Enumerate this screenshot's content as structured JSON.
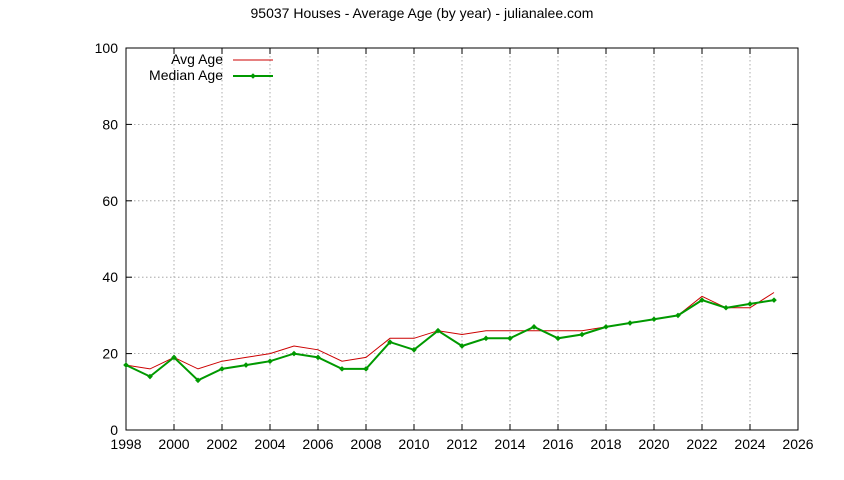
{
  "chart_data": {
    "type": "line",
    "title": "95037 Houses - Average Age (by year) - julianalee.com",
    "xlabel": "",
    "ylabel": "",
    "xlim": [
      1998,
      2026
    ],
    "ylim": [
      0,
      100
    ],
    "x_ticks": [
      "1998",
      "2000",
      "2002",
      "2004",
      "2006",
      "2008",
      "2010",
      "2012",
      "2014",
      "2016",
      "2018",
      "2020",
      "2022",
      "2024",
      "2026"
    ],
    "y_ticks": [
      "0",
      "20",
      "40",
      "60",
      "80",
      "100"
    ],
    "grid": true,
    "legend_position": "top-left",
    "x": [
      1998,
      1999,
      2000,
      2001,
      2002,
      2003,
      2004,
      2005,
      2006,
      2007,
      2008,
      2009,
      2010,
      2011,
      2012,
      2013,
      2014,
      2015,
      2016,
      2017,
      2018,
      2019,
      2020,
      2021,
      2022,
      2023,
      2024,
      2025
    ],
    "series": [
      {
        "name": "Avg Age",
        "color": "#cc0000",
        "markers": false,
        "values": [
          17,
          16,
          19,
          16,
          18,
          19,
          20,
          22,
          21,
          18,
          19,
          24,
          24,
          26,
          25,
          26,
          26,
          26,
          26,
          26,
          27,
          28,
          29,
          30,
          35,
          32,
          32,
          36
        ]
      },
      {
        "name": "Median Age",
        "color": "#009900",
        "markers": true,
        "values": [
          17,
          14,
          19,
          13,
          16,
          17,
          18,
          20,
          19,
          16,
          16,
          23,
          21,
          26,
          22,
          24,
          24,
          27,
          24,
          25,
          27,
          28,
          29,
          30,
          34,
          32,
          33,
          34
        ]
      }
    ]
  }
}
